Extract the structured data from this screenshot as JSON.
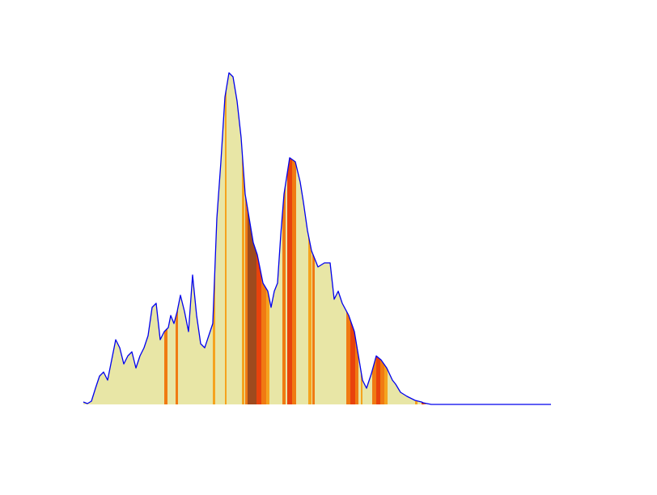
{
  "chart_data": {
    "type": "area",
    "title": "",
    "xlabel": "",
    "ylabel": "",
    "axes_visible": false,
    "grid": false,
    "legend": "none",
    "xlim": [
      0,
      580
    ],
    "ylim": [
      0,
      410
    ],
    "colors": {
      "line": "#0000ee",
      "fill": "#e8e6a6",
      "bands": [
        "#f5a31e",
        "#f07a12",
        "#e8420c",
        "#9e4a1e",
        "#f0c040"
      ]
    },
    "x": [
      0,
      5,
      10,
      15,
      20,
      25,
      30,
      35,
      40,
      45,
      50,
      55,
      60,
      65,
      70,
      75,
      80,
      85,
      90,
      95,
      100,
      105,
      108,
      112,
      116,
      120,
      125,
      130,
      135,
      140,
      145,
      150,
      155,
      160,
      165,
      170,
      175,
      180,
      185,
      190,
      195,
      200,
      205,
      210,
      215,
      222,
      228,
      232,
      236,
      240,
      244,
      248,
      255,
      262,
      268,
      272,
      277,
      282,
      290,
      298,
      305,
      310,
      315,
      320,
      328,
      335,
      340,
      345,
      350,
      356,
      362,
      368,
      375,
      382,
      386,
      392,
      400,
      410,
      418,
      420,
      425,
      430,
      435,
      440,
      445,
      450,
      458,
      465,
      475,
      485,
      495,
      505,
      515,
      525,
      535,
      545,
      552,
      558,
      565,
      572,
      578
    ],
    "values": [
      3,
      1,
      4,
      20,
      35,
      40,
      30,
      55,
      80,
      70,
      50,
      60,
      65,
      45,
      60,
      70,
      85,
      120,
      125,
      80,
      90,
      95,
      110,
      100,
      115,
      135,
      115,
      90,
      160,
      110,
      75,
      70,
      85,
      100,
      230,
      300,
      380,
      410,
      405,
      375,
      330,
      260,
      230,
      200,
      185,
      150,
      140,
      120,
      140,
      150,
      210,
      260,
      305,
      300,
      275,
      250,
      215,
      190,
      170,
      175,
      175,
      130,
      140,
      125,
      110,
      90,
      60,
      30,
      20,
      38,
      60,
      55,
      45,
      30,
      25,
      15,
      10,
      5,
      3,
      2,
      1,
      0,
      0,
      0,
      0,
      0,
      0,
      0,
      0,
      0,
      0,
      0,
      0,
      0,
      0,
      0,
      0,
      0,
      0,
      0,
      0
    ],
    "bands": [
      {
        "x": [
          100,
          104
        ],
        "color": "#f07a12"
      },
      {
        "x": [
          114,
          117
        ],
        "color": "#f07a12"
      },
      {
        "x": [
          160,
          163
        ],
        "color": "#f5a31e"
      },
      {
        "x": [
          175,
          177
        ],
        "color": "#f5a31e"
      },
      {
        "x": [
          196,
          199
        ],
        "color": "#f5a31e"
      },
      {
        "x": [
          200,
          203
        ],
        "color": "#f07a12"
      },
      {
        "x": [
          203,
          214
        ],
        "color": "#9e4a1e"
      },
      {
        "x": [
          214,
          220
        ],
        "color": "#e8420c"
      },
      {
        "x": [
          220,
          226
        ],
        "color": "#f07a12"
      },
      {
        "x": [
          226,
          230
        ],
        "color": "#f5a31e"
      },
      {
        "x": [
          246,
          250
        ],
        "color": "#f07a12"
      },
      {
        "x": [
          252,
          258
        ],
        "color": "#e8420c"
      },
      {
        "x": [
          258,
          263
        ],
        "color": "#f07a12"
      },
      {
        "x": [
          278,
          282
        ],
        "color": "#f5a31e"
      },
      {
        "x": [
          283,
          286
        ],
        "color": "#f07a12"
      },
      {
        "x": [
          325,
          330
        ],
        "color": "#f07a12"
      },
      {
        "x": [
          330,
          336
        ],
        "color": "#e8420c"
      },
      {
        "x": [
          336,
          340
        ],
        "color": "#f07a12"
      },
      {
        "x": [
          343,
          345
        ],
        "color": "#f5a31e"
      },
      {
        "x": [
          357,
          362
        ],
        "color": "#f07a12"
      },
      {
        "x": [
          362,
          367
        ],
        "color": "#e8420c"
      },
      {
        "x": [
          367,
          372
        ],
        "color": "#f07a12"
      },
      {
        "x": [
          372,
          376
        ],
        "color": "#f5a31e"
      },
      {
        "x": [
          410,
          413
        ],
        "color": "#f5a31e"
      },
      {
        "x": [
          418,
          421
        ],
        "color": "#e8420c"
      },
      {
        "x": [
          421,
          423
        ],
        "color": "#f07a12"
      },
      {
        "x": [
          432,
          434
        ],
        "color": "#f5a31e"
      },
      {
        "x": [
          446,
          449
        ],
        "color": "#f07a12"
      },
      {
        "x": [
          452,
          455
        ],
        "color": "#f5a31e"
      }
    ]
  }
}
